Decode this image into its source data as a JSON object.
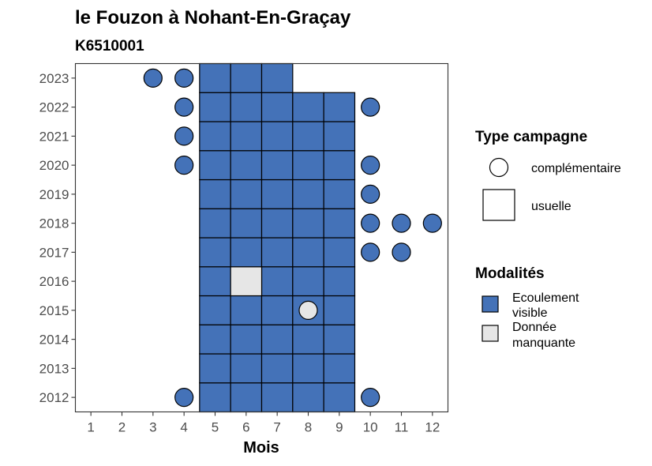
{
  "chart_data": {
    "type": "heatmap",
    "title": "le Fouzon à Nohant-En-Graçay",
    "subtitle": "K6510001",
    "xlabel": "Mois",
    "ylabel": "",
    "x_ticks": [
      "1",
      "2",
      "3",
      "4",
      "5",
      "6",
      "7",
      "8",
      "9",
      "10",
      "11",
      "12"
    ],
    "y_ticks": [
      "2012",
      "2013",
      "2014",
      "2015",
      "2016",
      "2017",
      "2018",
      "2019",
      "2020",
      "2021",
      "2022",
      "2023"
    ],
    "xlim": [
      0.5,
      12.5
    ],
    "ylim": [
      2011.5,
      2023.5
    ],
    "grid": false,
    "colors": {
      "ecoulement_visible": "#4472b8",
      "donnee_manquante": "#e6e6e6"
    },
    "legend": {
      "type_title": "Type campagne",
      "type_items": [
        {
          "shape": "circle",
          "label": "complémentaire"
        },
        {
          "shape": "square",
          "label": "usuelle"
        }
      ],
      "modal_title": "Modalités",
      "modal_items": [
        {
          "key": "ecoulement_visible",
          "label_lines": [
            "Ecoulement",
            "visible"
          ]
        },
        {
          "key": "donnee_manquante",
          "label_lines": [
            "Donnée",
            "manquante"
          ]
        }
      ]
    },
    "usuelle": [
      {
        "year": 2012,
        "months": [
          5,
          6,
          7,
          8,
          9
        ],
        "modalite": "ecoulement_visible"
      },
      {
        "year": 2013,
        "months": [
          5,
          6,
          7,
          8,
          9
        ],
        "modalite": "ecoulement_visible"
      },
      {
        "year": 2014,
        "months": [
          5,
          6,
          7,
          8,
          9
        ],
        "modalite": "ecoulement_visible"
      },
      {
        "year": 2015,
        "months": [
          5,
          6,
          7,
          8,
          9
        ],
        "modalite": "ecoulement_visible"
      },
      {
        "year": 2016,
        "months": [
          5,
          7,
          8,
          9
        ],
        "modalite": "ecoulement_visible"
      },
      {
        "year": 2016,
        "months": [
          6
        ],
        "modalite": "donnee_manquante"
      },
      {
        "year": 2017,
        "months": [
          5,
          6,
          7,
          8,
          9
        ],
        "modalite": "ecoulement_visible"
      },
      {
        "year": 2018,
        "months": [
          5,
          6,
          7,
          8,
          9
        ],
        "modalite": "ecoulement_visible"
      },
      {
        "year": 2019,
        "months": [
          5,
          6,
          7,
          8,
          9
        ],
        "modalite": "ecoulement_visible"
      },
      {
        "year": 2020,
        "months": [
          5,
          6,
          7,
          8,
          9
        ],
        "modalite": "ecoulement_visible"
      },
      {
        "year": 2021,
        "months": [
          5,
          6,
          7,
          8,
          9
        ],
        "modalite": "ecoulement_visible"
      },
      {
        "year": 2022,
        "months": [
          5,
          6,
          7,
          8,
          9
        ],
        "modalite": "ecoulement_visible"
      },
      {
        "year": 2023,
        "months": [
          5,
          6,
          7
        ],
        "modalite": "ecoulement_visible"
      }
    ],
    "complementaire": [
      {
        "year": 2012,
        "month": 4,
        "modalite": "ecoulement_visible"
      },
      {
        "year": 2012,
        "month": 10,
        "modalite": "ecoulement_visible"
      },
      {
        "year": 2015,
        "month": 8,
        "modalite": "donnee_manquante"
      },
      {
        "year": 2017,
        "month": 10,
        "modalite": "ecoulement_visible"
      },
      {
        "year": 2017,
        "month": 11,
        "modalite": "ecoulement_visible"
      },
      {
        "year": 2018,
        "month": 10,
        "modalite": "ecoulement_visible"
      },
      {
        "year": 2018,
        "month": 11,
        "modalite": "ecoulement_visible"
      },
      {
        "year": 2018,
        "month": 12,
        "modalite": "ecoulement_visible"
      },
      {
        "year": 2019,
        "month": 10,
        "modalite": "ecoulement_visible"
      },
      {
        "year": 2020,
        "month": 4,
        "modalite": "ecoulement_visible"
      },
      {
        "year": 2020,
        "month": 10,
        "modalite": "ecoulement_visible"
      },
      {
        "year": 2021,
        "month": 4,
        "modalite": "ecoulement_visible"
      },
      {
        "year": 2022,
        "month": 4,
        "modalite": "ecoulement_visible"
      },
      {
        "year": 2022,
        "month": 10,
        "modalite": "ecoulement_visible"
      },
      {
        "year": 2023,
        "month": 3,
        "modalite": "ecoulement_visible"
      },
      {
        "year": 2023,
        "month": 4,
        "modalite": "ecoulement_visible"
      }
    ]
  }
}
